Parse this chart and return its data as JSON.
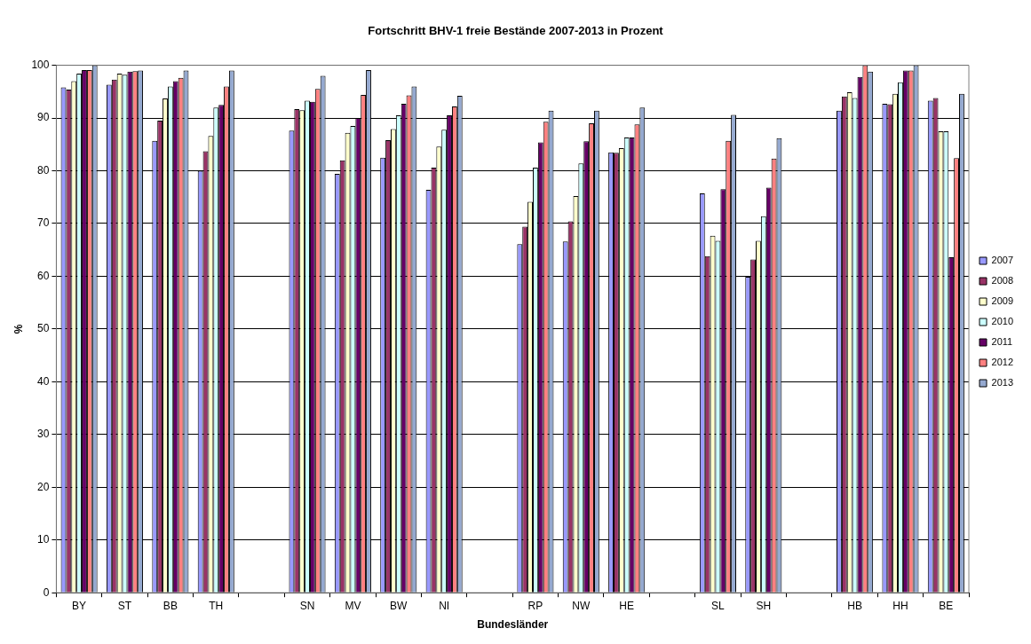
{
  "chart_data": {
    "type": "bar",
    "title": "Fortschritt BHV-1 freie Bestände 2007-2013 in Prozent",
    "xlabel": "Bundesländer",
    "ylabel": "%",
    "categories": [
      "BY",
      "ST",
      "BB",
      "TH",
      null,
      "SN",
      "MV",
      "BW",
      "NI",
      null,
      "RP",
      "NW",
      "HE",
      null,
      "SL",
      "SH",
      null,
      "HB",
      "HH",
      "BE"
    ],
    "series": [
      {
        "name": "2007",
        "color": "#9999ff",
        "values": [
          95.8,
          96.3,
          85.7,
          80,
          null,
          87.6,
          79.4,
          82.5,
          76.4,
          null,
          66.1,
          66.6,
          83.5,
          null,
          75.7,
          59.9,
          null,
          91.4,
          92.7,
          93.3
        ]
      },
      {
        "name": "2008",
        "color": "#993366",
        "values": [
          95.4,
          97.3,
          89.5,
          83.7,
          null,
          91.7,
          82,
          85.8,
          80.6,
          null,
          69.4,
          70.4,
          83.4,
          null,
          63.8,
          63.2,
          null,
          94.1,
          92.6,
          93.8
        ]
      },
      {
        "name": "2009",
        "color": "#ffffcc",
        "values": [
          97,
          98.4,
          93.7,
          86.6,
          null,
          91.5,
          87.2,
          87.9,
          84.6,
          null,
          74.1,
          75.2,
          84.3,
          null,
          67.7,
          66.7,
          null,
          94.9,
          94.6,
          87.5
        ]
      },
      {
        "name": "2010",
        "color": "#ccffff",
        "values": [
          98.4,
          98.2,
          96,
          92,
          null,
          93.3,
          88.5,
          90.5,
          87.8,
          null,
          80.6,
          81.4,
          86.3,
          null,
          66.7,
          71.4,
          null,
          93.8,
          96.8,
          87.5
        ]
      },
      {
        "name": "2011",
        "color": "#660066",
        "values": [
          99.1,
          98.8,
          97,
          92.5,
          null,
          93.1,
          90,
          92.7,
          90.5,
          null,
          85.4,
          85.6,
          86.3,
          null,
          76.5,
          76.8,
          null,
          97.8,
          99,
          63.6
        ]
      },
      {
        "name": "2012",
        "color": "#ff8080",
        "values": [
          99.1,
          98.9,
          97.6,
          96,
          null,
          95.5,
          94.4,
          94.3,
          92.2,
          null,
          89.3,
          89,
          88.8,
          null,
          85.7,
          82.3,
          null,
          100,
          99,
          82.4
        ]
      },
      {
        "name": "2013",
        "color": "#95a9d0",
        "values": [
          100,
          99,
          99,
          99,
          null,
          98,
          99.1,
          96,
          94.2,
          null,
          91.4,
          91.4,
          92,
          null,
          90.6,
          86.2,
          null,
          98.8,
          100,
          94.6
        ]
      }
    ],
    "ylim": [
      0,
      100
    ],
    "yticks": [
      0,
      10,
      20,
      30,
      40,
      50,
      60,
      70,
      80,
      90,
      100
    ],
    "grid": "y",
    "legend": "right"
  }
}
